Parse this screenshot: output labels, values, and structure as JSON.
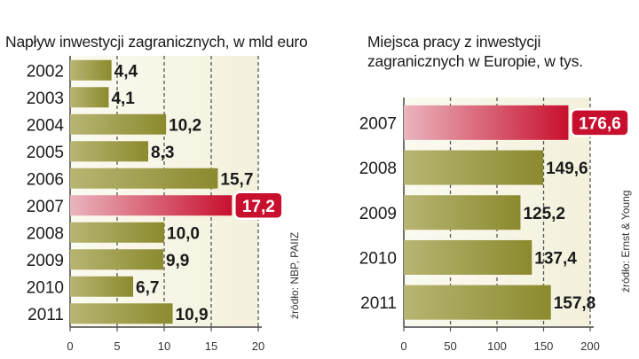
{
  "colors": {
    "bar": "#8b8a2e",
    "bar_light": "#b7b572",
    "highlight": "#c8102e",
    "highlight_light": "#eab5bd",
    "panel_bg": "#f3f1dc",
    "label_box_bg": "#c8102e"
  },
  "chart_data": [
    {
      "type": "bar",
      "orientation": "horizontal",
      "title": "Napływ inwestycji zagranicznych, w mld euro",
      "source": "źródło: NBP, PAIIZ",
      "categories": [
        "2002",
        "2003",
        "2004",
        "2005",
        "2006",
        "2007",
        "2008",
        "2009",
        "2010",
        "2011"
      ],
      "values": [
        4.4,
        4.1,
        10.2,
        8.3,
        15.7,
        17.2,
        10.0,
        9.9,
        6.7,
        10.9
      ],
      "value_labels": [
        "4,4",
        "4,1",
        "10,2",
        "8,3",
        "15,7",
        "17,2",
        "10,0",
        "9,9",
        "6,7",
        "10,9"
      ],
      "highlight": "2007",
      "xlim": [
        0,
        20
      ],
      "ticks": [
        0,
        5,
        10,
        15,
        20
      ],
      "tick_labels": [
        "0",
        "5",
        "10",
        "15",
        "20"
      ],
      "grid": true
    },
    {
      "type": "bar",
      "orientation": "horizontal",
      "title": "Miejsca pracy z inwestycji zagranicznych w Europie, w tys.",
      "title_lines": [
        "Miejsca pracy z inwestycji",
        "zagranicznych w Europie, w tys."
      ],
      "source": "źródło: Ernst & Young",
      "categories": [
        "2007",
        "2008",
        "2009",
        "2010",
        "2011"
      ],
      "values": [
        176.6,
        149.6,
        125.2,
        137.4,
        157.8
      ],
      "value_labels": [
        "176,6",
        "149,6",
        "125,2",
        "137,4",
        "157,8"
      ],
      "highlight": "2007",
      "xlim": [
        0,
        200
      ],
      "ticks": [
        0,
        50,
        100,
        150,
        200
      ],
      "tick_labels": [
        "0",
        "50",
        "100",
        "150",
        "200"
      ],
      "grid": true
    }
  ]
}
